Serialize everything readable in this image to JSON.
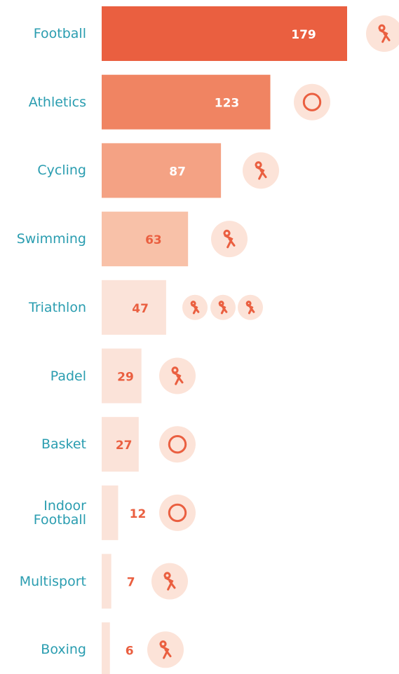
{
  "chart_data": {
    "type": "bar",
    "orientation": "horizontal",
    "categories": [
      "Football",
      "Athletics",
      "Cycling",
      "Swimming",
      "Triathlon",
      "Padel",
      "Basket",
      "Indoor Football",
      "Multisport",
      "Boxing"
    ],
    "values": [
      179,
      123,
      87,
      63,
      47,
      29,
      27,
      12,
      7,
      6
    ],
    "colors": [
      "#ea5f40",
      "#f08462",
      "#f4a284",
      "#f8c1a8",
      "#fbe3d9",
      "#fbe3d9",
      "#fbe3d9",
      "#fbe3d9",
      "#fbe3d9",
      "#fbe3d9"
    ],
    "value_label_colors": [
      "#ffffff",
      "#ffffff",
      "#ffffff",
      "#ea5f40",
      "#ea5f40",
      "#ea5f40",
      "#ea5f40",
      "#ea5f40",
      "#ea5f40",
      "#ea5f40"
    ],
    "category_color": "#2a9db0"
  }
}
